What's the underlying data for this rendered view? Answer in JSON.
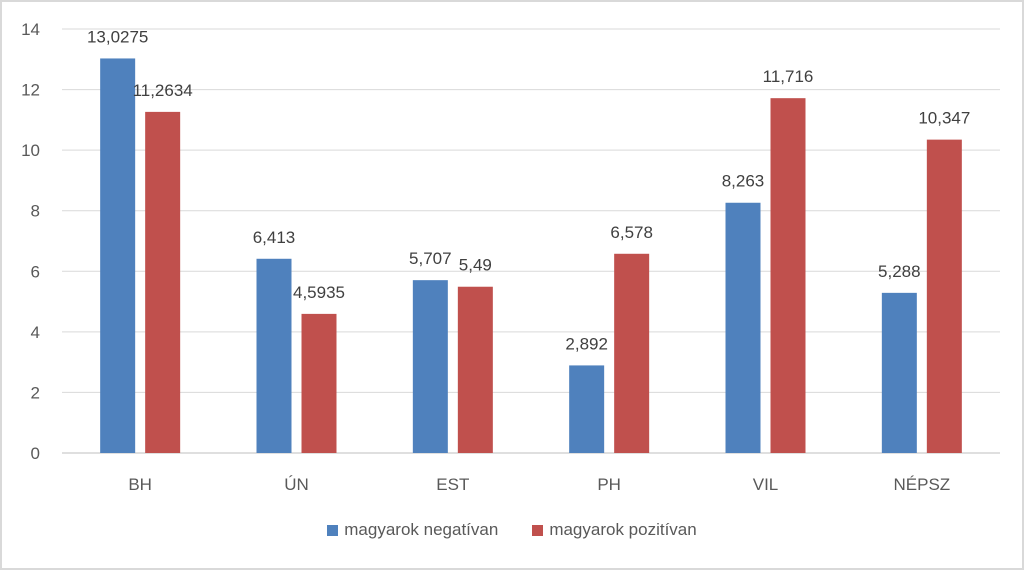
{
  "chart_data": {
    "type": "bar",
    "title": "",
    "xlabel": "",
    "ylabel": "",
    "ylim": [
      0,
      14
    ],
    "yticks": [
      "0",
      "2",
      "4",
      "6",
      "8",
      "10",
      "12",
      "14"
    ],
    "grid": true,
    "legend_position": "bottom",
    "categories": [
      "BH",
      "ÚN",
      "EST",
      "PH",
      "VIL",
      "NÉPSZ"
    ],
    "series": [
      {
        "name": "magyarok negatívan",
        "color": "#4F81BD",
        "values": [
          13.0275,
          6.413,
          5.707,
          2.892,
          8.263,
          5.288
        ],
        "labels": [
          "13,0275",
          "6,413",
          "5,707",
          "2,892",
          "8,263",
          "5,288"
        ]
      },
      {
        "name": "magyarok pozitívan",
        "color": "#C0504D",
        "values": [
          11.2634,
          4.5935,
          5.49,
          6.578,
          11.716,
          10.347
        ],
        "labels": [
          "11,2634",
          "4,5935",
          "5,49",
          "6,578",
          "11,716",
          "10,347"
        ]
      }
    ]
  }
}
